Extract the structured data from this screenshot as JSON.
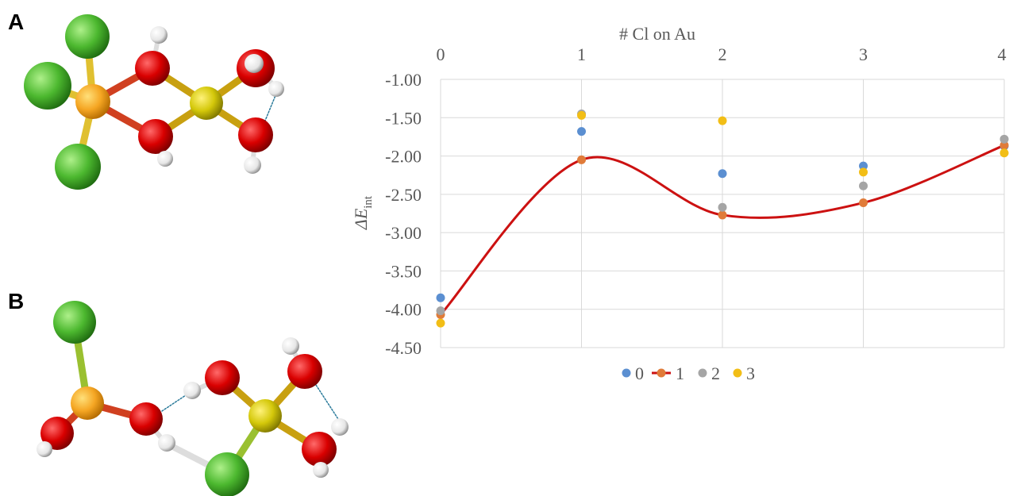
{
  "panels": {
    "a": "A",
    "b": "B"
  },
  "colors": {
    "au": "#f5a623",
    "cl": "#4cb82f",
    "o": "#d90000",
    "s": "#d4c80a",
    "h": "#f2f2f2",
    "series0": "#5b8fd1",
    "series1": "#e07b39",
    "series2": "#a5a5a5",
    "series3": "#f2be16",
    "fit": "#cc1111"
  },
  "chart_data": {
    "type": "scatter",
    "title": "",
    "xlabel": "# Cl on Au",
    "ylabel_main": "ΔE",
    "ylabel_sub": "int",
    "x": [
      0,
      1,
      2,
      3,
      4
    ],
    "x_ticks": [
      "0",
      "1",
      "2",
      "3",
      "4"
    ],
    "ylim": [
      -4.5,
      -1.0
    ],
    "y_ticks": [
      "-1.00",
      "-1.50",
      "-2.00",
      "-2.50",
      "-3.00",
      "-3.50",
      "-4.00",
      "-4.50"
    ],
    "y_tick_values": [
      -1.0,
      -1.5,
      -2.0,
      -2.5,
      -3.0,
      -3.5,
      -4.0,
      -4.5
    ],
    "grid": true,
    "legend_position": "bottom",
    "series": [
      {
        "name": "0",
        "values": [
          -3.85,
          -1.68,
          -2.23,
          -2.13,
          -1.87
        ]
      },
      {
        "name": "1",
        "values": [
          -4.07,
          -2.05,
          -2.77,
          -2.61,
          -1.86
        ]
      },
      {
        "name": "2",
        "values": [
          -4.02,
          -1.45,
          -2.67,
          -2.39,
          -1.78
        ]
      },
      {
        "name": "3",
        "values": [
          -4.18,
          -1.47,
          -1.54,
          -2.21,
          -1.96
        ]
      }
    ],
    "trendline_series": "1"
  }
}
